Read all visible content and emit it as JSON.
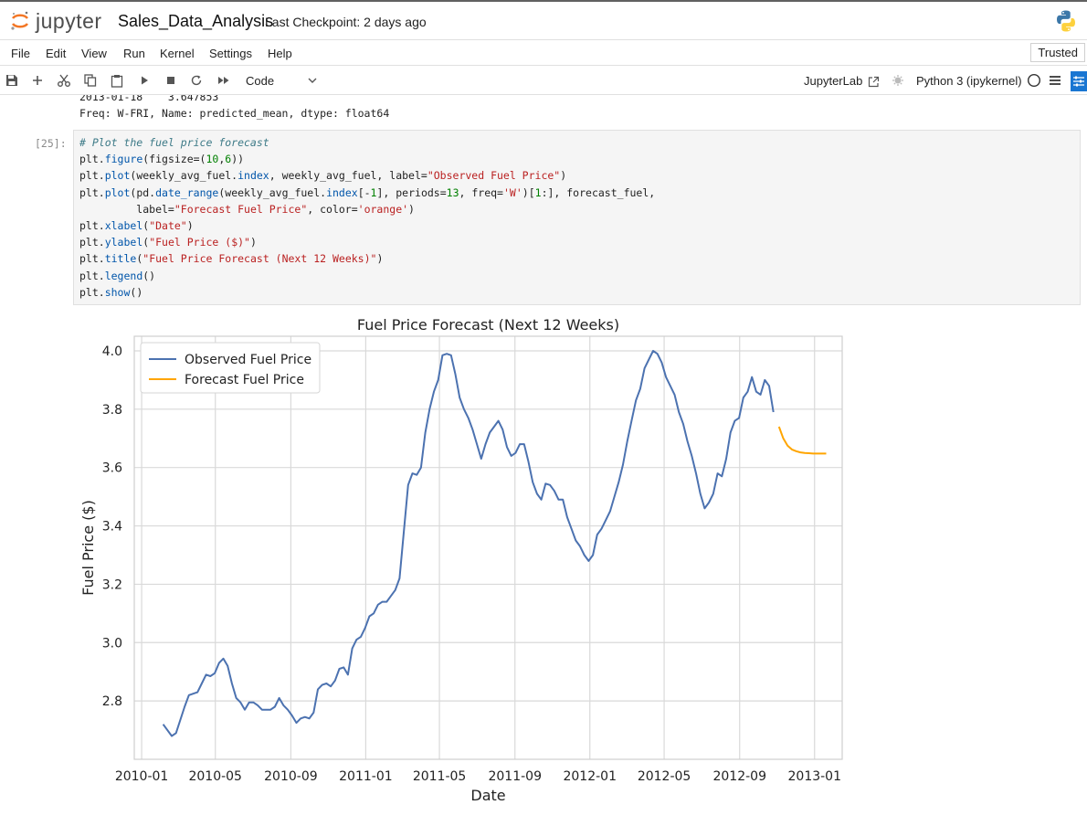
{
  "app": {
    "name": "jupyter",
    "notebook_title": "Sales_Data_Analysis",
    "checkpoint": "Last Checkpoint: 2 days ago"
  },
  "menu": {
    "items": [
      "File",
      "Edit",
      "View",
      "Run",
      "Kernel",
      "Settings",
      "Help"
    ],
    "trusted": "Trusted"
  },
  "toolbar": {
    "cell_type": "Code",
    "jupyterlab": "JupyterLab",
    "kernel": "Python 3 (ipykernel)"
  },
  "output_prev": {
    "line1": "2013-01-18    3.647853",
    "line2": "Freq: W-FRI, Name: predicted_mean, dtype: float64"
  },
  "cell": {
    "prompt": "[25]:",
    "lines": [
      "# Plot the fuel price forecast",
      "plt.figure(figsize=(10,6))",
      "plt.plot(weekly_avg_fuel.index, weekly_avg_fuel, label=\"Observed Fuel Price\")",
      "plt.plot(pd.date_range(weekly_avg_fuel.index[-1], periods=13, freq='W')[1:], forecast_fuel,",
      "         label=\"Forecast Fuel Price\", color='orange')",
      "plt.xlabel(\"Date\")",
      "plt.ylabel(\"Fuel Price ($)\")",
      "plt.title(\"Fuel Price Forecast (Next 12 Weeks)\")",
      "plt.legend()",
      "plt.show()"
    ]
  },
  "chart_data": {
    "type": "line",
    "title": "Fuel Price Forecast (Next 12 Weeks)",
    "xlabel": "Date",
    "ylabel": "Fuel Price ($)",
    "x_ticks": [
      "2010-01",
      "2010-05",
      "2010-09",
      "2011-01",
      "2011-05",
      "2011-09",
      "2012-01",
      "2012-05",
      "2012-09",
      "2013-01"
    ],
    "y_ticks": [
      "2.8",
      "3.0",
      "3.2",
      "3.4",
      "3.6",
      "3.8",
      "4.0"
    ],
    "xlim": [
      "2009-12-20",
      "2013-02-15"
    ],
    "ylim": [
      2.6,
      4.05
    ],
    "grid": true,
    "legend_position": "upper left",
    "series": [
      {
        "name": "Observed Fuel Price",
        "color": "#4c72b0",
        "points": [
          [
            "2010-02-05",
            2.72
          ],
          [
            "2010-02-19",
            2.68
          ],
          [
            "2010-02-26",
            2.69
          ],
          [
            "2010-03-12",
            2.78
          ],
          [
            "2010-03-19",
            2.82
          ],
          [
            "2010-03-26",
            2.825
          ],
          [
            "2010-04-02",
            2.83
          ],
          [
            "2010-04-09",
            2.86
          ],
          [
            "2010-04-16",
            2.89
          ],
          [
            "2010-04-23",
            2.885
          ],
          [
            "2010-04-30",
            2.895
          ],
          [
            "2010-05-07",
            2.93
          ],
          [
            "2010-05-14",
            2.945
          ],
          [
            "2010-05-21",
            2.92
          ],
          [
            "2010-05-28",
            2.86
          ],
          [
            "2010-06-04",
            2.81
          ],
          [
            "2010-06-11",
            2.795
          ],
          [
            "2010-06-18",
            2.77
          ],
          [
            "2010-06-25",
            2.795
          ],
          [
            "2010-07-02",
            2.795
          ],
          [
            "2010-07-09",
            2.785
          ],
          [
            "2010-07-16",
            2.77
          ],
          [
            "2010-07-23",
            2.77
          ],
          [
            "2010-07-30",
            2.77
          ],
          [
            "2010-08-06",
            2.78
          ],
          [
            "2010-08-13",
            2.81
          ],
          [
            "2010-08-20",
            2.785
          ],
          [
            "2010-08-27",
            2.77
          ],
          [
            "2010-09-03",
            2.75
          ],
          [
            "2010-09-10",
            2.725
          ],
          [
            "2010-09-17",
            2.74
          ],
          [
            "2010-09-24",
            2.745
          ],
          [
            "2010-10-01",
            2.74
          ],
          [
            "2010-10-08",
            2.76
          ],
          [
            "2010-10-15",
            2.84
          ],
          [
            "2010-10-22",
            2.855
          ],
          [
            "2010-10-29",
            2.86
          ],
          [
            "2010-11-05",
            2.85
          ],
          [
            "2010-11-12",
            2.87
          ],
          [
            "2010-11-19",
            2.91
          ],
          [
            "2010-11-26",
            2.915
          ],
          [
            "2010-12-03",
            2.89
          ],
          [
            "2010-12-10",
            2.98
          ],
          [
            "2010-12-17",
            3.01
          ],
          [
            "2010-12-24",
            3.02
          ],
          [
            "2010-12-31",
            3.05
          ],
          [
            "2011-01-07",
            3.09
          ],
          [
            "2011-01-14",
            3.1
          ],
          [
            "2011-01-21",
            3.13
          ],
          [
            "2011-01-28",
            3.14
          ],
          [
            "2011-02-04",
            3.14
          ],
          [
            "2011-02-11",
            3.16
          ],
          [
            "2011-02-18",
            3.18
          ],
          [
            "2011-02-25",
            3.22
          ],
          [
            "2011-03-04",
            3.38
          ],
          [
            "2011-03-11",
            3.54
          ],
          [
            "2011-03-18",
            3.58
          ],
          [
            "2011-03-25",
            3.575
          ],
          [
            "2011-04-01",
            3.6
          ],
          [
            "2011-04-08",
            3.72
          ],
          [
            "2011-04-15",
            3.8
          ],
          [
            "2011-04-22",
            3.86
          ],
          [
            "2011-04-29",
            3.9
          ],
          [
            "2011-05-06",
            3.985
          ],
          [
            "2011-05-13",
            3.99
          ],
          [
            "2011-05-20",
            3.985
          ],
          [
            "2011-05-27",
            3.92
          ],
          [
            "2011-06-03",
            3.84
          ],
          [
            "2011-06-10",
            3.8
          ],
          [
            "2011-06-17",
            3.77
          ],
          [
            "2011-06-24",
            3.73
          ],
          [
            "2011-07-01",
            3.68
          ],
          [
            "2011-07-08",
            3.63
          ],
          [
            "2011-07-15",
            3.68
          ],
          [
            "2011-07-22",
            3.72
          ],
          [
            "2011-07-29",
            3.74
          ],
          [
            "2011-08-05",
            3.76
          ],
          [
            "2011-08-12",
            3.73
          ],
          [
            "2011-08-19",
            3.67
          ],
          [
            "2011-08-26",
            3.64
          ],
          [
            "2011-09-02",
            3.65
          ],
          [
            "2011-09-09",
            3.68
          ],
          [
            "2011-09-16",
            3.68
          ],
          [
            "2011-09-23",
            3.62
          ],
          [
            "2011-09-30",
            3.55
          ],
          [
            "2011-10-07",
            3.51
          ],
          [
            "2011-10-14",
            3.49
          ],
          [
            "2011-10-21",
            3.545
          ],
          [
            "2011-10-28",
            3.54
          ],
          [
            "2011-11-04",
            3.52
          ],
          [
            "2011-11-11",
            3.49
          ],
          [
            "2011-11-18",
            3.49
          ],
          [
            "2011-11-25",
            3.43
          ],
          [
            "2011-12-02",
            3.39
          ],
          [
            "2011-12-09",
            3.35
          ],
          [
            "2011-12-16",
            3.33
          ],
          [
            "2011-12-23",
            3.3
          ],
          [
            "2011-12-30",
            3.28
          ],
          [
            "2012-01-06",
            3.3
          ],
          [
            "2012-01-13",
            3.37
          ],
          [
            "2012-01-20",
            3.39
          ],
          [
            "2012-01-27",
            3.42
          ],
          [
            "2012-02-03",
            3.45
          ],
          [
            "2012-02-10",
            3.5
          ],
          [
            "2012-02-17",
            3.55
          ],
          [
            "2012-02-24",
            3.61
          ],
          [
            "2012-03-02",
            3.69
          ],
          [
            "2012-03-09",
            3.76
          ],
          [
            "2012-03-16",
            3.83
          ],
          [
            "2012-03-23",
            3.87
          ],
          [
            "2012-03-30",
            3.94
          ],
          [
            "2012-04-06",
            3.97
          ],
          [
            "2012-04-13",
            4.0
          ],
          [
            "2012-04-20",
            3.99
          ],
          [
            "2012-04-27",
            3.96
          ],
          [
            "2012-05-04",
            3.91
          ],
          [
            "2012-05-11",
            3.88
          ],
          [
            "2012-05-18",
            3.85
          ],
          [
            "2012-05-25",
            3.79
          ],
          [
            "2012-06-01",
            3.75
          ],
          [
            "2012-06-08",
            3.69
          ],
          [
            "2012-06-15",
            3.64
          ],
          [
            "2012-06-22",
            3.58
          ],
          [
            "2012-06-29",
            3.51
          ],
          [
            "2012-07-06",
            3.46
          ],
          [
            "2012-07-13",
            3.48
          ],
          [
            "2012-07-20",
            3.51
          ],
          [
            "2012-07-27",
            3.58
          ],
          [
            "2012-08-03",
            3.57
          ],
          [
            "2012-08-10",
            3.63
          ],
          [
            "2012-08-17",
            3.72
          ],
          [
            "2012-08-24",
            3.76
          ],
          [
            "2012-08-31",
            3.77
          ],
          [
            "2012-09-07",
            3.84
          ],
          [
            "2012-09-14",
            3.86
          ],
          [
            "2012-09-21",
            3.91
          ],
          [
            "2012-09-28",
            3.86
          ],
          [
            "2012-10-05",
            3.85
          ],
          [
            "2012-10-12",
            3.9
          ],
          [
            "2012-10-19",
            3.88
          ],
          [
            "2012-10-26",
            3.79
          ]
        ]
      },
      {
        "name": "Forecast Fuel Price",
        "color": "#ffa500",
        "points": [
          [
            "2012-11-04",
            3.74
          ],
          [
            "2012-11-11",
            3.7
          ],
          [
            "2012-11-18",
            3.675
          ],
          [
            "2012-11-25",
            3.662
          ],
          [
            "2012-12-02",
            3.656
          ],
          [
            "2012-12-09",
            3.652
          ],
          [
            "2012-12-16",
            3.65
          ],
          [
            "2012-12-23",
            3.649
          ],
          [
            "2012-12-30",
            3.648
          ],
          [
            "2013-01-06",
            3.648
          ],
          [
            "2013-01-13",
            3.648
          ],
          [
            "2013-01-20",
            3.648
          ]
        ]
      }
    ]
  }
}
